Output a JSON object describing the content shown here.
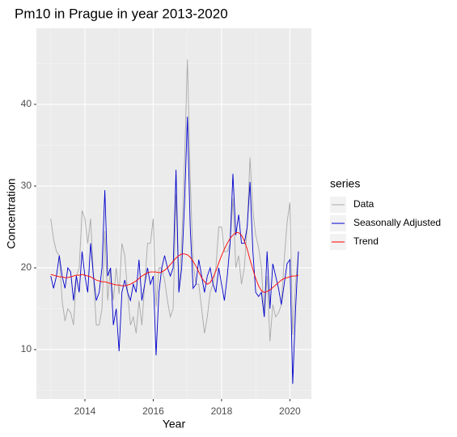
{
  "chart_data": {
    "type": "line",
    "title": "Pm10 in Prague in year 2013-2020",
    "xlabel": "Year",
    "ylabel": "Concentration",
    "legend_title": "series",
    "legend_position": "right",
    "grid": true,
    "xlim": [
      2012.58,
      2020.63
    ],
    "xticks": [
      2014,
      2016,
      2018,
      2020
    ],
    "ylim": [
      3.96,
      49.3
    ],
    "yticks": [
      10,
      20,
      30,
      40
    ],
    "x": [
      2013,
      2013.083,
      2013.167,
      2013.25,
      2013.333,
      2013.417,
      2013.5,
      2013.583,
      2013.667,
      2013.75,
      2013.833,
      2013.917,
      2014,
      2014.083,
      2014.167,
      2014.25,
      2014.333,
      2014.417,
      2014.5,
      2014.583,
      2014.667,
      2014.75,
      2014.833,
      2014.917,
      2015,
      2015.083,
      2015.167,
      2015.25,
      2015.333,
      2015.417,
      2015.5,
      2015.583,
      2015.667,
      2015.75,
      2015.833,
      2015.917,
      2016,
      2016.083,
      2016.167,
      2016.25,
      2016.333,
      2016.417,
      2016.5,
      2016.583,
      2016.667,
      2016.75,
      2016.833,
      2016.917,
      2017,
      2017.083,
      2017.167,
      2017.25,
      2017.333,
      2017.417,
      2017.5,
      2017.583,
      2017.667,
      2017.75,
      2017.833,
      2017.917,
      2018,
      2018.083,
      2018.167,
      2018.25,
      2018.333,
      2018.417,
      2018.5,
      2018.583,
      2018.667,
      2018.75,
      2018.833,
      2018.917,
      2019,
      2019.083,
      2019.167,
      2019.25,
      2019.333,
      2019.417,
      2019.5,
      2019.583,
      2019.667,
      2019.75,
      2019.833,
      2019.917,
      2020,
      2020.083,
      2020.167,
      2020.25
    ],
    "series": [
      {
        "name": "Data",
        "color": "#a9a9a9",
        "values": [
          26,
          23.5,
          22,
          21.5,
          16,
          13.5,
          15,
          14.5,
          13,
          19,
          20,
          27,
          26,
          23,
          26,
          19,
          13,
          13,
          15,
          24.5,
          16,
          20,
          16,
          20,
          16.8,
          23,
          21.5,
          17,
          13,
          14,
          12,
          16,
          13,
          18,
          23,
          23,
          26,
          15.3,
          20,
          20,
          18.5,
          16,
          14,
          15,
          29,
          17,
          23,
          33,
          45.5,
          31,
          20.5,
          18,
          18,
          15,
          12,
          14,
          17,
          18,
          20,
          25,
          25,
          22,
          22,
          23,
          28.5,
          20,
          21.5,
          18,
          20,
          25,
          33.5,
          27,
          24,
          22.5,
          20,
          14,
          19,
          11,
          15.5,
          14,
          14.5,
          15.5,
          21,
          25.5,
          28,
          11.8,
          18,
          22
        ]
      },
      {
        "name": "Seasonally Adjusted",
        "color": "#0000cd",
        "values": [
          19,
          17.5,
          19,
          21.5,
          19,
          17.5,
          20,
          19.5,
          16,
          19,
          17,
          22,
          19,
          17,
          23,
          19,
          16,
          17,
          20,
          29.5,
          19,
          20,
          13,
          15,
          9.8,
          17,
          18.5,
          17,
          16,
          18,
          17,
          21,
          16,
          18,
          20,
          18,
          19,
          9.3,
          17,
          20,
          21.5,
          20,
          19,
          20,
          32,
          17,
          20,
          28,
          38.5,
          25,
          17.5,
          18,
          21,
          19,
          17,
          19,
          20,
          18,
          17,
          20,
          18,
          16,
          19,
          23,
          31.5,
          24,
          26.5,
          23,
          23,
          25,
          30.5,
          22,
          17,
          16.5,
          17,
          14,
          22,
          15,
          20.5,
          19,
          17.5,
          15.5,
          18,
          20.5,
          21,
          5.8,
          15,
          22
        ]
      },
      {
        "name": "Trend",
        "color": "#ff0000",
        "values": [
          19.2,
          19.1,
          19.0,
          18.9,
          18.9,
          18.8,
          18.8,
          18.9,
          19.0,
          19.1,
          19.1,
          19.2,
          19.1,
          19.0,
          18.9,
          18.7,
          18.5,
          18.4,
          18.3,
          18.3,
          18.2,
          18.1,
          18.0,
          17.9,
          17.9,
          17.8,
          17.8,
          17.9,
          18.0,
          18.2,
          18.4,
          18.7,
          19.0,
          19.2,
          19.4,
          19.5,
          19.5,
          19.5,
          19.4,
          19.5,
          19.7,
          20.0,
          20.4,
          20.8,
          21.2,
          21.5,
          21.7,
          21.7,
          21.6,
          21.3,
          20.8,
          20.2,
          19.5,
          18.8,
          18.3,
          18.0,
          18.2,
          18.8,
          19.6,
          20.6,
          21.5,
          22.3,
          23.0,
          23.6,
          24.0,
          24.3,
          24.3,
          24.0,
          23.3,
          22.3,
          21.0,
          19.8,
          18.7,
          17.8,
          17.2,
          17.0,
          17.1,
          17.3,
          17.6,
          17.9,
          18.2,
          18.5,
          18.7,
          18.8,
          18.9,
          19.0,
          19.0,
          19.1
        ]
      }
    ]
  }
}
